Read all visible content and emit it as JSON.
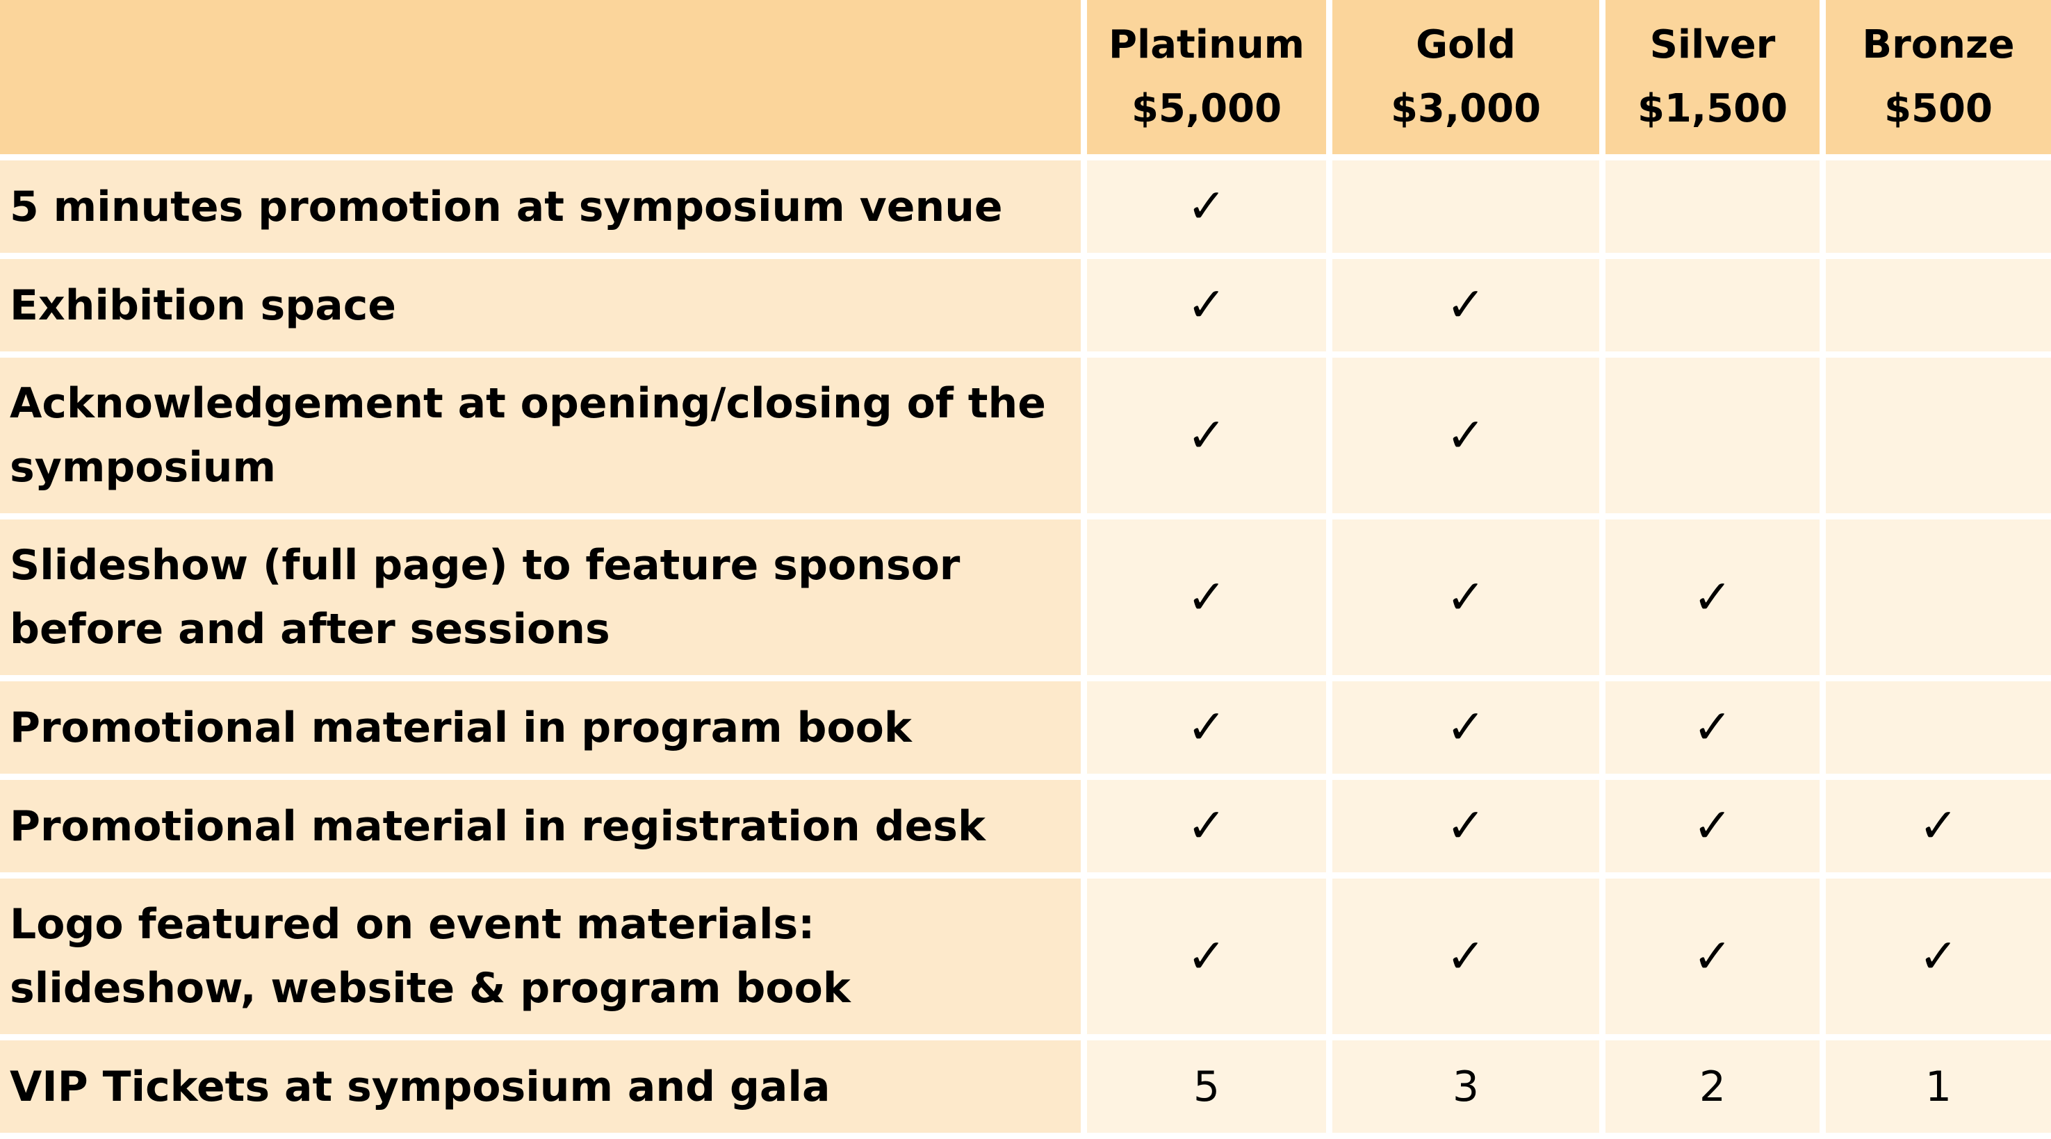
{
  "tiers": [
    {
      "name": "Platinum",
      "price": "$5,000"
    },
    {
      "name": "Gold",
      "price": "$3,000"
    },
    {
      "name": "Silver",
      "price": "$1,500"
    },
    {
      "name": "Bronze",
      "price": "$500"
    }
  ],
  "check_mark": "✓",
  "benefits": [
    {
      "label": "5 minutes promotion at symposium venue",
      "values": [
        "✓",
        "",
        "",
        ""
      ]
    },
    {
      "label": "Exhibition space",
      "values": [
        "✓",
        "✓",
        "",
        ""
      ]
    },
    {
      "label": "Acknowledgement at opening/closing of the symposium",
      "values": [
        "✓",
        "✓",
        "",
        ""
      ]
    },
    {
      "label": "Slideshow (full page) to feature sponsor before and after sessions",
      "values": [
        "✓",
        "✓",
        "✓",
        ""
      ]
    },
    {
      "label": "Promotional material in program book",
      "values": [
        "✓",
        "✓",
        "✓",
        ""
      ]
    },
    {
      "label": "Promotional material in registration desk",
      "values": [
        "✓",
        "✓",
        "✓",
        "✓"
      ]
    },
    {
      "label": "Logo featured on event materials: slideshow, website & program book",
      "values": [
        "✓",
        "✓",
        "✓",
        "✓"
      ]
    },
    {
      "label": "VIP Tickets at symposium and gala",
      "values": [
        "5",
        "3",
        "2",
        "1"
      ]
    }
  ],
  "colors": {
    "header_bg": "#fbd59b",
    "feature_bg": "#fde9cb",
    "cell_bg": "#fef3e1",
    "gap": "#ffffff"
  }
}
